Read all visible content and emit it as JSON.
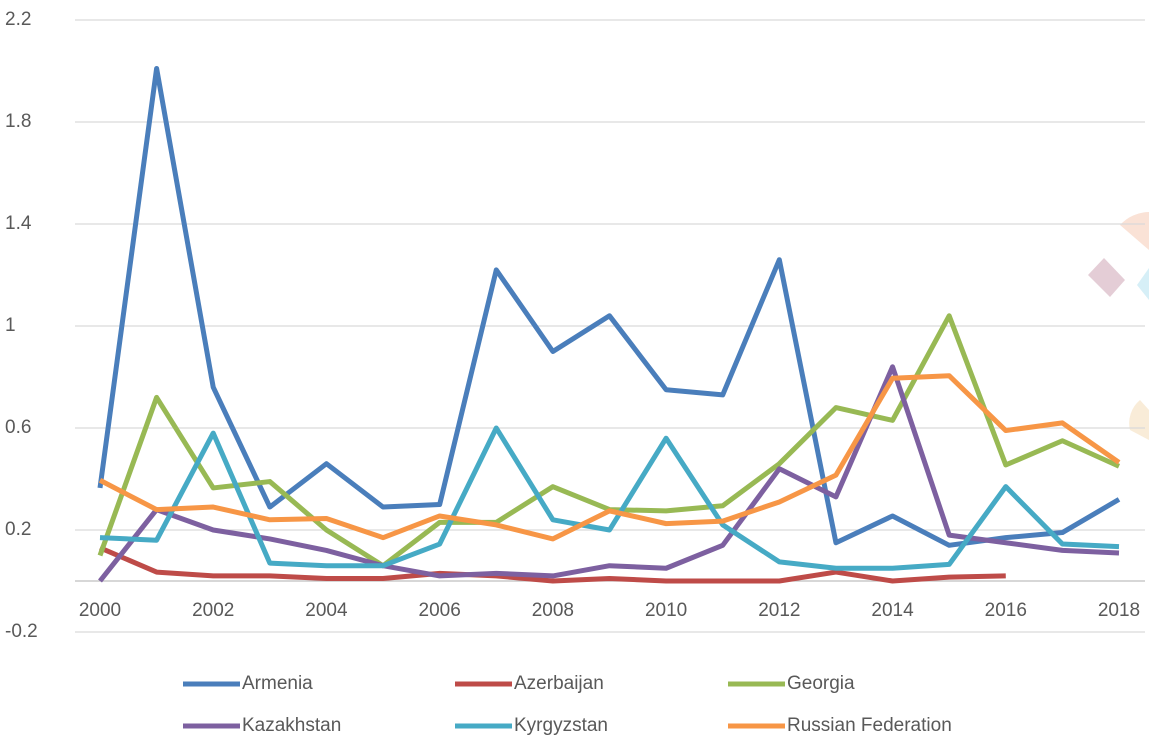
{
  "chart_data": {
    "type": "line",
    "x": [
      2000,
      2001,
      2002,
      2003,
      2004,
      2005,
      2006,
      2007,
      2008,
      2009,
      2010,
      2011,
      2012,
      2013,
      2014,
      2015,
      2016,
      2017,
      2018
    ],
    "xlim": [
      2000,
      2018
    ],
    "xticks": [
      2000,
      2002,
      2004,
      2006,
      2008,
      2010,
      2012,
      2014,
      2016,
      2018
    ],
    "ylim": [
      -0.2,
      2.2
    ],
    "yticks": [
      -0.2,
      0.2,
      0.6,
      1,
      1.4,
      1.8,
      2.2
    ],
    "grid": true,
    "legend": "bottom",
    "series": [
      {
        "name": "Armenia",
        "color": "#4a7ebb",
        "values": [
          0.365,
          2.01,
          0.76,
          0.29,
          0.46,
          0.29,
          0.3,
          1.22,
          0.9,
          1.04,
          0.75,
          0.73,
          1.26,
          0.15,
          0.255,
          0.14,
          0.17,
          0.19,
          0.32
        ]
      },
      {
        "name": "Azerbaijan",
        "color": "#be4b48",
        "values": [
          0.13,
          0.035,
          0.02,
          0.02,
          0.01,
          0.01,
          0.03,
          0.02,
          0.0,
          0.01,
          0.0,
          0.0,
          0.0,
          0.035,
          0.0,
          0.015,
          0.02,
          null,
          null
        ]
      },
      {
        "name": "Georgia",
        "color": "#98b954",
        "values": [
          0.1,
          0.72,
          0.365,
          0.39,
          0.2,
          0.06,
          0.23,
          0.23,
          0.37,
          0.28,
          0.275,
          0.295,
          0.46,
          0.68,
          0.63,
          1.04,
          0.455,
          0.55,
          0.45
        ]
      },
      {
        "name": "Kazakhstan",
        "color": "#7d60a0",
        "values": [
          0.0,
          0.28,
          0.2,
          0.165,
          0.12,
          0.06,
          0.02,
          0.03,
          0.02,
          0.06,
          0.05,
          0.14,
          0.44,
          0.33,
          0.84,
          0.18,
          0.15,
          0.12,
          0.11
        ]
      },
      {
        "name": "Kyrgyzstan",
        "color": "#46aac5",
        "values": [
          0.17,
          0.16,
          0.58,
          0.07,
          0.06,
          0.06,
          0.145,
          0.6,
          0.24,
          0.2,
          0.56,
          0.22,
          0.075,
          0.05,
          0.05,
          0.065,
          0.37,
          0.145,
          0.135
        ]
      },
      {
        "name": "Russian Federation",
        "color": "#f79646",
        "values": [
          0.395,
          0.28,
          0.29,
          0.24,
          0.245,
          0.17,
          0.255,
          0.22,
          0.165,
          0.275,
          0.225,
          0.235,
          0.31,
          0.415,
          0.795,
          0.805,
          0.59,
          0.62,
          0.465
        ]
      }
    ]
  }
}
